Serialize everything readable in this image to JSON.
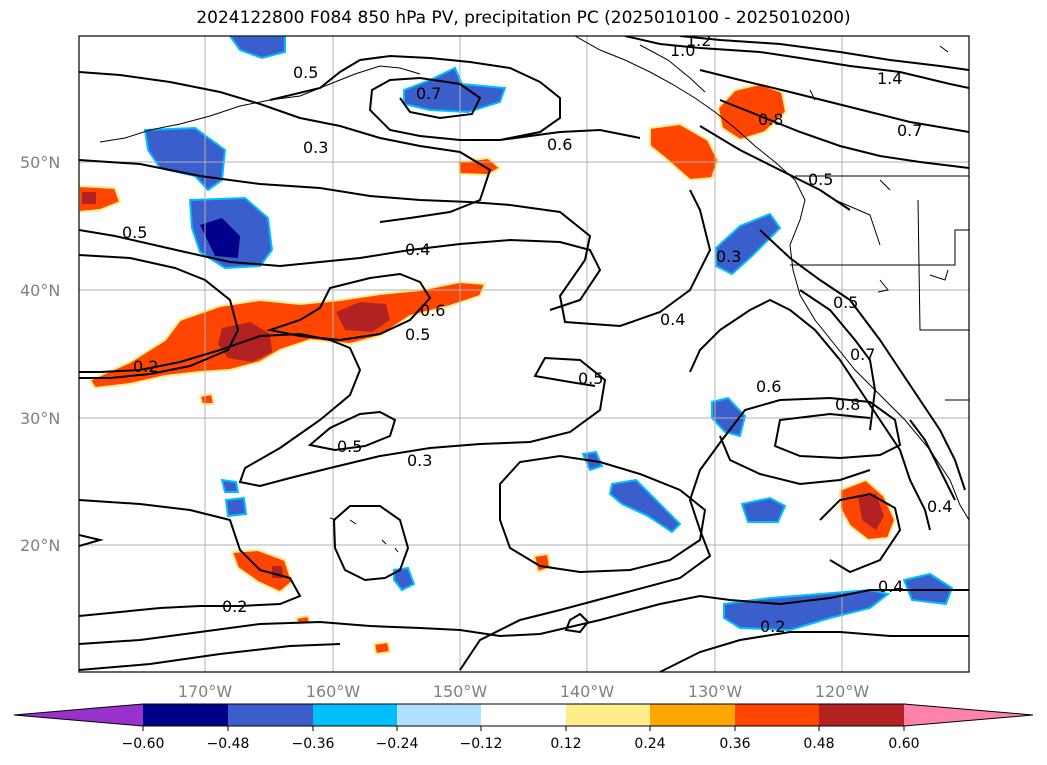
{
  "title": "2024122800 F084 850 hPa PV, precipitation PC (2025010100 - 2025010200)",
  "lat_ticks": [
    "50°N",
    "40°N",
    "30°N",
    "20°N"
  ],
  "lon_ticks": [
    "170°W",
    "160°W",
    "150°W",
    "140°W",
    "130°W",
    "120°W"
  ],
  "contour_labels": [
    "0.5",
    "0.7",
    "0.3",
    "0.6",
    "1.0",
    "1.2",
    "1.4",
    "0.7",
    "0.8",
    "0.5",
    "0.5",
    "0.4",
    "0.6",
    "0.5",
    "0.4",
    "0.2",
    "0.5",
    "0.5",
    "0.3",
    "0.6",
    "0.7",
    "0.8",
    "0.5",
    "0.4",
    "0.3",
    "0.2",
    "0.4",
    "0.2"
  ],
  "colorbar": {
    "ticks": [
      "−0.60",
      "−0.48",
      "−0.36",
      "−0.24",
      "−0.12",
      "0.12",
      "0.24",
      "0.36",
      "0.48",
      "0.60"
    ],
    "colors": [
      "#00008b",
      "#3a5fcd",
      "#00bfff",
      "#b0e2ff",
      "#ffffff",
      "#ffec8b",
      "#ffa500",
      "#ff4500",
      "#b22222"
    ],
    "under_color": "#9932cc",
    "over_color": "#ff82ab"
  },
  "colors": {
    "deep_blue": "#00008b",
    "blue": "#3a5fcd",
    "light_blue": "#00bfff",
    "orange_red": "#ff4500",
    "dark_red": "#b22222",
    "yellow": "#ffec8b",
    "grid": "#b0b0b0"
  }
}
